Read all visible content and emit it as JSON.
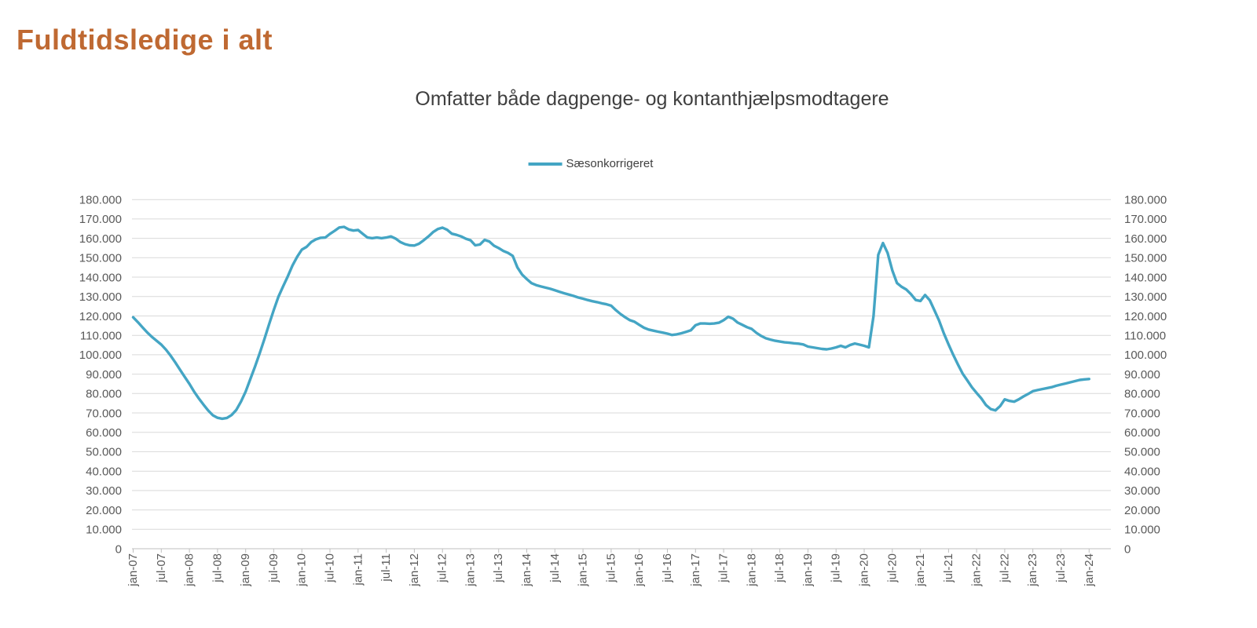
{
  "page": {
    "title": "Fuldtidsledige i alt"
  },
  "chart": {
    "subtitle": "Omfatter både dagpenge- og kontanthjælpsmodtagere",
    "legend": {
      "label": "Sæsonkorrigeret"
    }
  },
  "colors": {
    "title_text": "#BF6932",
    "subtitle_text": "#3f3f3f",
    "line": "#44A5C4",
    "grid": "#D9D9D9",
    "axis": "#BFBFBF",
    "tick_text": "#595959"
  },
  "chart_data": {
    "type": "line",
    "title": "Omfatter både dagpenge- og kontanthjælpsmodtagere",
    "legend_entries": [
      "Sæsonkorrigeret"
    ],
    "legend_position": "top-center",
    "grid": true,
    "dual_y_axis": true,
    "x_unit": "month",
    "x_start": "jan-07",
    "x_end": "jan-24",
    "x_tick_labels": [
      "jan-07",
      "jul-07",
      "jan-08",
      "jul-08",
      "jan-09",
      "jul-09",
      "jan-10",
      "jul-10",
      "jan-11",
      "jul-11",
      "jan-12",
      "jul-12",
      "jan-13",
      "jul-13",
      "jan-14",
      "jul-14",
      "jan-15",
      "jul-15",
      "jan-16",
      "jul-16",
      "jan-17",
      "jul-17",
      "jan-18",
      "jul-18",
      "jan-19",
      "jul-19",
      "jan-20",
      "jul-20",
      "jan-21",
      "jul-21",
      "jan-22",
      "jul-22",
      "jan-23",
      "jul-23",
      "jan-24"
    ],
    "ylim": [
      0,
      180000
    ],
    "y_tick_step": 10000,
    "y_tick_labels": [
      "0",
      "10.000",
      "20.000",
      "30.000",
      "40.000",
      "50.000",
      "60.000",
      "70.000",
      "80.000",
      "90.000",
      "100.000",
      "110.000",
      "120.000",
      "130.000",
      "140.000",
      "150.000",
      "160.000",
      "170.000",
      "180.000"
    ],
    "series": [
      {
        "name": "Sæsonkorrigeret",
        "color": "#44A5C4",
        "values": [
          119300,
          116800,
          114100,
          111500,
          109200,
          107200,
          105200,
          102600,
          99500,
          96000,
          92300,
          88600,
          85000,
          81000,
          77500,
          74300,
          71300,
          68800,
          67500,
          67000,
          67400,
          68900,
          71500,
          75800,
          81000,
          87400,
          93900,
          100700,
          108000,
          115700,
          123000,
          129900,
          135300,
          140400,
          146000,
          150500,
          154200,
          155600,
          158100,
          159500,
          160300,
          160400,
          162300,
          163900,
          165600,
          165900,
          164600,
          164000,
          164300,
          162300,
          160400,
          160100,
          160400,
          160100,
          160400,
          161000,
          159900,
          158100,
          157000,
          156400,
          156300,
          157200,
          159000,
          161000,
          163200,
          164800,
          165500,
          164400,
          162400,
          161800,
          161000,
          159800,
          159000,
          156400,
          156800,
          159200,
          158400,
          156200,
          155000,
          153500,
          152500,
          151000,
          145000,
          141300,
          139000,
          136900,
          135900,
          135200,
          134600,
          134000,
          133200,
          132400,
          131700,
          131000,
          130300,
          129500,
          128900,
          128200,
          127600,
          127100,
          126500,
          126000,
          125300,
          123000,
          121000,
          119300,
          117800,
          117000,
          115400,
          113900,
          113000,
          112400,
          111900,
          111400,
          110900,
          110200,
          110500,
          111100,
          111800,
          112600,
          115200,
          116100,
          116100,
          116000,
          116100,
          116500,
          117800,
          119600,
          118600,
          116600,
          115400,
          114200,
          113300,
          111300,
          109700,
          108500,
          107800,
          107200,
          106800,
          106400,
          106200,
          105900,
          105700,
          105300,
          104200,
          103800,
          103400,
          103000,
          102800,
          103200,
          103800,
          104600,
          103800,
          105000,
          105800,
          105200,
          104600,
          103800,
          120000,
          151500,
          157600,
          152500,
          143500,
          137000,
          135000,
          133600,
          131200,
          128200,
          127700,
          130800,
          128100,
          122800,
          117500,
          111000,
          105300,
          100000,
          95000,
          90300,
          86800,
          83200,
          80300,
          77500,
          74000,
          72000,
          71300,
          73500,
          77000,
          76200,
          75800,
          77000,
          78500,
          79800,
          81200,
          81800,
          82300,
          82800,
          83300,
          84000,
          84600,
          85200,
          85800,
          86400,
          87000,
          87300,
          87500
        ]
      }
    ]
  }
}
